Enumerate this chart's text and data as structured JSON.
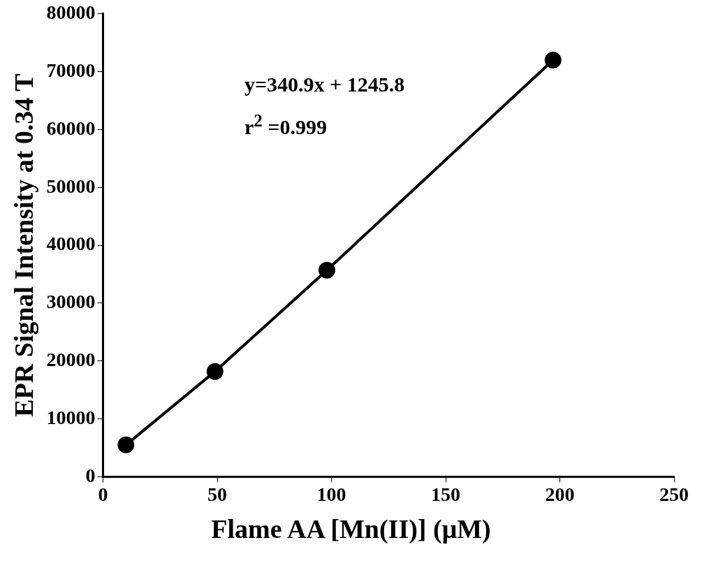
{
  "chart_data": {
    "type": "line",
    "xlabel": "Flame AA [Mn(II)] (μM)",
    "ylabel": "EPR Signal Intensity at 0.34 T",
    "x": [
      10,
      49,
      98,
      197
    ],
    "series": [
      {
        "color": "#000000",
        "values": [
          5500,
          18200,
          35700,
          72000
        ]
      }
    ],
    "xlim": [
      0,
      250
    ],
    "xticks": [
      0,
      50,
      100,
      150,
      200,
      250
    ],
    "ylim": [
      0,
      80000
    ],
    "yticks": [
      0,
      10000,
      20000,
      30000,
      40000,
      50000,
      60000,
      70000,
      80000
    ],
    "annotations": [
      "y=340.9x + 1245.8",
      "r$^{2}$ =0.999"
    ],
    "marker": "circle",
    "line_style": "solid",
    "grid": false,
    "legend": false
  }
}
